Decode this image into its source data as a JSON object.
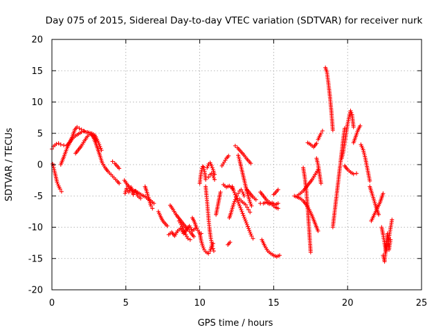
{
  "chart_data": {
    "type": "scatter",
    "title": "Day 075 of 2015, Sidereal Day-to-day VTEC variation (SDTVAR) for receiver nurk",
    "xlabel": "GPS time / hours",
    "ylabel": "SDTVAR / TECUs",
    "xlim": [
      0,
      25
    ],
    "ylim": [
      -20,
      20
    ],
    "xticks": [
      "0",
      "5",
      "10",
      "15",
      "20",
      "25"
    ],
    "yticks": [
      "-20",
      "-15",
      "-10",
      "-5",
      "0",
      "5",
      "10",
      "15",
      "20"
    ],
    "grid": true,
    "marker": "plus",
    "color": "#ff0000",
    "series": [
      {
        "name": "s1",
        "x": [
          0.0,
          0.1,
          0.2,
          0.3,
          0.45,
          0.6,
          0.8,
          1.0,
          1.2,
          1.4,
          1.55,
          1.7,
          1.85,
          2.0,
          2.15,
          2.3,
          2.5,
          2.7,
          2.9,
          3.05,
          3.2,
          3.35
        ],
        "y": [
          2.5,
          2.9,
          3.1,
          3.3,
          3.4,
          3.2,
          3.1,
          3.0,
          3.6,
          4.6,
          5.6,
          6.0,
          5.8,
          5.6,
          5.4,
          5.2,
          5.1,
          5.0,
          4.7,
          4.0,
          3.2,
          2.3
        ]
      },
      {
        "name": "s2",
        "x": [
          0.05,
          0.15,
          0.25,
          0.35,
          0.45,
          0.55,
          0.65
        ],
        "y": [
          0.1,
          -0.8,
          -1.8,
          -2.8,
          -3.4,
          -3.9,
          -4.3
        ]
      },
      {
        "name": "s3",
        "x": [
          0.6,
          0.8,
          1.0,
          1.2,
          1.4,
          1.6,
          1.8,
          2.0,
          2.2,
          2.4,
          2.6,
          2.8,
          3.0,
          3.2,
          3.4,
          3.6,
          3.8,
          4.0,
          4.2,
          4.4,
          4.55
        ],
        "y": [
          0.0,
          1.2,
          2.5,
          3.5,
          4.2,
          4.6,
          4.9,
          5.2,
          5.3,
          5.2,
          5.0,
          4.4,
          3.2,
          1.8,
          0.3,
          -0.5,
          -1.1,
          -1.6,
          -2.1,
          -2.6,
          -3.0
        ]
      },
      {
        "name": "s4",
        "x": [
          1.6,
          1.8,
          2.0,
          2.2,
          2.4,
          2.6,
          2.8,
          3.0
        ],
        "y": [
          1.8,
          2.4,
          3.0,
          3.8,
          4.5,
          5.0,
          4.6,
          3.8
        ]
      },
      {
        "name": "s5",
        "x": [
          4.1,
          4.25,
          4.4,
          4.55
        ],
        "y": [
          0.5,
          0.2,
          -0.2,
          -0.6
        ]
      },
      {
        "name": "s6",
        "x": [
          4.9,
          5.1,
          5.3,
          5.5,
          5.7,
          5.9,
          6.1,
          6.3,
          6.5,
          6.7,
          6.9
        ],
        "y": [
          -2.5,
          -3.2,
          -3.8,
          -4.1,
          -4.3,
          -4.6,
          -4.9,
          -5.1,
          -5.5,
          -5.8,
          -6.2
        ]
      },
      {
        "name": "s7",
        "x": [
          4.95,
          5.05,
          5.2,
          5.35,
          5.5,
          5.65,
          5.8,
          6.0
        ],
        "y": [
          -4.6,
          -3.8,
          -4.4,
          -3.6,
          -4.8,
          -4.2,
          -5.0,
          -5.4
        ]
      },
      {
        "name": "s8",
        "x": [
          6.3,
          6.4,
          6.5,
          6.6,
          6.7,
          6.8
        ],
        "y": [
          -3.5,
          -4.2,
          -5.0,
          -5.8,
          -6.6,
          -7.0
        ]
      },
      {
        "name": "s9",
        "x": [
          7.2,
          7.35,
          7.5,
          7.65,
          7.8
        ],
        "y": [
          -7.5,
          -8.3,
          -9.0,
          -9.4,
          -9.8
        ]
      },
      {
        "name": "s10",
        "x": [
          7.9,
          8.1,
          8.3,
          8.5,
          8.7,
          8.9,
          9.1,
          9.3,
          9.5,
          9.7
        ],
        "y": [
          -11.2,
          -10.8,
          -11.4,
          -10.6,
          -10.2,
          -11.0,
          -10.4,
          -9.8,
          -10.6,
          -10.2
        ]
      },
      {
        "name": "s11",
        "x": [
          8.0,
          8.2,
          8.4,
          8.6,
          8.8,
          9.0,
          9.2,
          9.4,
          9.6
        ],
        "y": [
          -6.5,
          -7.2,
          -8.0,
          -8.6,
          -9.2,
          -9.8,
          -10.4,
          -10.9,
          -11.5
        ]
      },
      {
        "name": "s12",
        "x": [
          8.6,
          8.75,
          8.9,
          9.05,
          9.2,
          9.35
        ],
        "y": [
          -9.0,
          -9.6,
          -10.4,
          -11.2,
          -11.8,
          -12.0
        ]
      },
      {
        "name": "s13",
        "x": [
          9.5,
          9.65,
          9.8,
          9.95,
          10.1
        ],
        "y": [
          -8.5,
          -9.2,
          -10.2,
          -10.8,
          -11.0
        ]
      },
      {
        "name": "s14",
        "x": [
          10.0,
          10.1,
          10.2,
          10.3,
          10.4,
          10.5,
          10.6,
          10.7,
          10.8,
          10.9
        ],
        "y": [
          -11.0,
          -12.2,
          -13.0,
          -13.6,
          -13.9,
          -14.1,
          -14.2,
          -13.8,
          -13.0,
          -12.6
        ]
      },
      {
        "name": "s15",
        "x": [
          10.0,
          10.05,
          10.1,
          10.15,
          10.2,
          10.25,
          10.3,
          10.35,
          10.4
        ],
        "y": [
          -3.0,
          -2.0,
          -1.2,
          -0.6,
          -0.3,
          -0.4,
          -0.8,
          -1.4,
          -2.4
        ]
      },
      {
        "name": "s16",
        "x": [
          10.4,
          10.45,
          10.5,
          10.55,
          10.6,
          10.65,
          10.7,
          10.75,
          10.8,
          10.85,
          10.9,
          10.95
        ],
        "y": [
          -3.5,
          -4.8,
          -6.0,
          -7.4,
          -8.8,
          -10.0,
          -11.0,
          -11.8,
          -12.4,
          -13.0,
          -13.4,
          -13.8
        ]
      },
      {
        "name": "s17",
        "x": [
          10.5,
          10.6,
          10.7,
          10.8,
          10.9,
          11.0
        ],
        "y": [
          -0.5,
          0.1,
          0.3,
          -0.2,
          -0.8,
          -1.6
        ]
      },
      {
        "name": "s18",
        "x": [
          10.6,
          10.7,
          10.8,
          10.9,
          11.0
        ],
        "y": [
          -2.0,
          -1.6,
          -1.4,
          -1.8,
          -2.4
        ]
      },
      {
        "name": "s19",
        "x": [
          11.1,
          11.2,
          11.3,
          11.4
        ],
        "y": [
          -8.0,
          -6.8,
          -5.6,
          -4.4
        ]
      },
      {
        "name": "s20",
        "x": [
          11.5,
          11.65,
          11.8,
          11.95
        ],
        "y": [
          -0.2,
          0.4,
          1.0,
          1.4
        ]
      },
      {
        "name": "s21",
        "x": [
          11.6,
          11.8,
          12.0,
          12.2
        ],
        "y": [
          -3.2,
          -3.6,
          -3.4,
          -3.8
        ]
      },
      {
        "name": "s22",
        "x": [
          12.0,
          12.1,
          12.2,
          12.3,
          12.4,
          12.5,
          12.6,
          12.7,
          12.8,
          12.9,
          13.0
        ],
        "y": [
          -8.5,
          -7.8,
          -7.0,
          -6.2,
          -5.6,
          -5.0,
          -4.6,
          -4.2,
          -4.0,
          -4.4,
          -5.0
        ]
      },
      {
        "name": "s23",
        "x": [
          12.2,
          12.3,
          12.4,
          12.5,
          12.6,
          12.7,
          12.8,
          12.9,
          13.0,
          13.1,
          13.2,
          13.3,
          13.4,
          13.5,
          13.6
        ],
        "y": [
          -3.5,
          -4.2,
          -4.8,
          -5.4,
          -6.0,
          -6.6,
          -7.2,
          -7.8,
          -8.4,
          -9.0,
          -9.6,
          -10.2,
          -10.8,
          -11.4,
          -11.8
        ]
      },
      {
        "name": "s24",
        "x": [
          12.4,
          12.55,
          12.7,
          12.85,
          13.0,
          13.15,
          13.3,
          13.45
        ],
        "y": [
          3.0,
          2.7,
          2.3,
          1.9,
          1.5,
          1.0,
          0.6,
          0.2
        ]
      },
      {
        "name": "s25",
        "x": [
          12.6,
          12.7,
          12.8,
          12.9,
          13.0,
          13.1,
          13.2,
          13.3,
          13.4,
          13.5
        ],
        "y": [
          1.5,
          0.6,
          -0.4,
          -1.4,
          -2.4,
          -3.4,
          -4.4,
          -5.2,
          -6.0,
          -6.6
        ]
      },
      {
        "name": "s26",
        "x": [
          12.7,
          12.8,
          12.9,
          13.0,
          13.1,
          13.2,
          13.3,
          13.4
        ],
        "y": [
          -5.5,
          -5.8,
          -6.0,
          -6.2,
          -6.4,
          -6.8,
          -7.2,
          -7.6
        ]
      },
      {
        "name": "s27",
        "x": [
          13.2,
          13.4,
          13.6,
          13.8
        ],
        "y": [
          -4.0,
          -4.6,
          -5.2,
          -5.6
        ]
      },
      {
        "name": "s28",
        "x": [
          11.9,
          12.05
        ],
        "y": [
          -12.8,
          -12.4
        ]
      },
      {
        "name": "s29",
        "x": [
          14.1,
          14.3,
          14.5,
          14.7,
          14.9,
          15.1,
          15.3
        ],
        "y": [
          -4.4,
          -5.0,
          -5.6,
          -6.0,
          -6.4,
          -6.8,
          -7.0
        ]
      },
      {
        "name": "s30",
        "x": [
          14.1,
          14.3,
          14.5,
          14.7,
          14.9,
          15.1,
          15.3
        ],
        "y": [
          -6.2,
          -6.2,
          -6.0,
          -6.3,
          -6.1,
          -6.4,
          -6.2
        ]
      },
      {
        "name": "s31",
        "x": [
          14.2,
          14.4,
          14.6,
          14.8,
          15.0,
          15.2,
          15.4
        ],
        "y": [
          -12.0,
          -13.0,
          -13.8,
          -14.2,
          -14.5,
          -14.7,
          -14.5
        ]
      },
      {
        "name": "s32",
        "x": [
          15.0,
          15.15,
          15.3
        ],
        "y": [
          -4.8,
          -4.4,
          -4.0
        ]
      },
      {
        "name": "s33",
        "x": [
          16.4,
          16.6,
          16.8,
          17.0,
          17.2,
          17.4,
          17.6,
          17.8,
          18.0
        ],
        "y": [
          -5.0,
          -5.2,
          -5.4,
          -5.8,
          -6.4,
          -7.2,
          -8.2,
          -9.4,
          -10.6
        ]
      },
      {
        "name": "s34",
        "x": [
          16.6,
          16.8,
          17.0,
          17.2,
          17.4,
          17.6,
          17.8,
          18.0
        ],
        "y": [
          -5.0,
          -4.6,
          -4.2,
          -3.6,
          -3.0,
          -2.4,
          -1.6,
          -0.8
        ]
      },
      {
        "name": "s35",
        "x": [
          17.0,
          17.1,
          17.2,
          17.3,
          17.4,
          17.5
        ],
        "y": [
          -0.5,
          -2.0,
          -4.0,
          -7.0,
          -10.5,
          -14.0
        ]
      },
      {
        "name": "s36",
        "x": [
          17.3,
          17.5,
          17.7,
          17.9
        ],
        "y": [
          3.5,
          3.2,
          2.8,
          3.4
        ]
      },
      {
        "name": "s37",
        "x": [
          17.9,
          18.0,
          18.1,
          18.2
        ],
        "y": [
          1.0,
          0.0,
          -1.5,
          -3.0
        ]
      },
      {
        "name": "s38",
        "x": [
          18.0,
          18.1,
          18.2,
          18.3
        ],
        "y": [
          4.0,
          4.5,
          5.0,
          5.4
        ]
      },
      {
        "name": "s39",
        "x": [
          18.5,
          18.6,
          18.7,
          18.8,
          18.9,
          19.0
        ],
        "y": [
          15.5,
          14.8,
          13.0,
          11.0,
          8.5,
          5.5
        ]
      },
      {
        "name": "s40",
        "x": [
          19.0,
          19.1,
          19.2,
          19.3,
          19.4,
          19.5,
          19.6,
          19.7,
          19.8
        ],
        "y": [
          -10.0,
          -8.0,
          -6.0,
          -4.0,
          -2.0,
          0.0,
          2.0,
          4.0,
          5.8
        ]
      },
      {
        "name": "s41",
        "x": [
          19.6,
          19.7,
          19.8,
          19.9,
          20.0,
          20.1,
          20.2,
          20.3,
          20.4
        ],
        "y": [
          1.0,
          2.0,
          3.5,
          5.0,
          6.5,
          7.6,
          8.6,
          8.0,
          6.0
        ]
      },
      {
        "name": "s42",
        "x": [
          19.8,
          20.0,
          20.2,
          20.4,
          20.6
        ],
        "y": [
          -0.2,
          -0.8,
          -1.2,
          -1.5,
          -1.4
        ]
      },
      {
        "name": "s43",
        "x": [
          20.4,
          20.55,
          20.7,
          20.85
        ],
        "y": [
          3.5,
          4.5,
          5.5,
          6.2
        ]
      },
      {
        "name": "s44",
        "x": [
          20.9,
          21.05,
          21.2,
          21.35,
          21.5
        ],
        "y": [
          3.2,
          2.4,
          1.0,
          -0.8,
          -2.6
        ]
      },
      {
        "name": "s45",
        "x": [
          21.5,
          21.7,
          21.9,
          22.1
        ],
        "y": [
          -3.5,
          -5.0,
          -6.6,
          -8.0
        ]
      },
      {
        "name": "s46",
        "x": [
          21.6,
          21.8,
          22.0,
          22.2,
          22.4
        ],
        "y": [
          -9.0,
          -8.0,
          -7.0,
          -6.0,
          -4.6
        ]
      },
      {
        "name": "s47",
        "x": [
          22.3,
          22.4,
          22.5,
          22.6,
          22.7,
          22.8,
          22.9,
          23.0
        ],
        "y": [
          -10.0,
          -11.2,
          -12.6,
          -13.8,
          -12.8,
          -11.6,
          -10.2,
          -8.8
        ]
      },
      {
        "name": "s48",
        "x": [
          22.4,
          22.5,
          22.6,
          22.7,
          22.8,
          22.9
        ],
        "y": [
          -14.5,
          -15.5,
          -13.0,
          -11.0,
          -13.6,
          -12.0
        ]
      }
    ]
  }
}
